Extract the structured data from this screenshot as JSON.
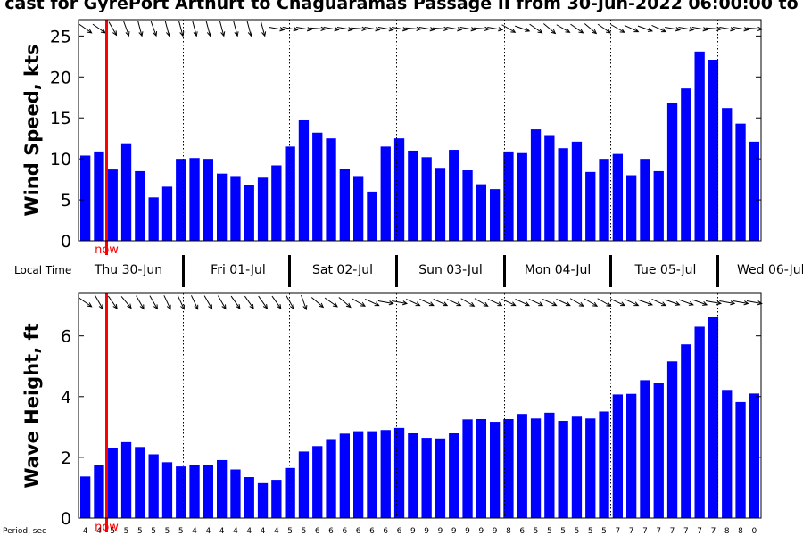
{
  "title": "cast for GyrePort Arthurt to Chaguaramas Passage II from 30-Jun-2022 06:00:00 to",
  "local_time_label": "Local Time",
  "period_label": "Period, sec",
  "now_label": "now",
  "colors": {
    "bar": "#0000ff",
    "now_line": "#ff0000",
    "axis": "#000000"
  },
  "chart_data": [
    {
      "type": "bar",
      "title": "",
      "ylabel": "Wind Speed, kts",
      "ylim": [
        0,
        27
      ],
      "yticks": [
        0,
        5,
        10,
        15,
        20,
        25
      ],
      "values": [
        10.4,
        10.9,
        8.7,
        11.9,
        8.5,
        5.3,
        6.6,
        10.0,
        10.1,
        10.0,
        8.2,
        7.9,
        6.8,
        7.7,
        9.2,
        11.5,
        14.7,
        13.2,
        12.5,
        8.8,
        7.9,
        6.0,
        11.5,
        12.5,
        11.0,
        10.2,
        8.9,
        11.1,
        8.6,
        6.9,
        6.3,
        10.9,
        10.7,
        13.6,
        12.9,
        11.3,
        12.1,
        8.4,
        10.0,
        10.6,
        8.0,
        10.0,
        8.5,
        16.8,
        18.6,
        23.1,
        22.1,
        16.2,
        14.3,
        12.1
      ],
      "wind_direction_deg": [
        125,
        125,
        150,
        160,
        165,
        160,
        165,
        165,
        165,
        165,
        165,
        165,
        165,
        165,
        100,
        100,
        100,
        95,
        100,
        100,
        95,
        100,
        100,
        100,
        95,
        100,
        95,
        100,
        100,
        95,
        100,
        120,
        110,
        125,
        130,
        120,
        125,
        130,
        125,
        120,
        115,
        110,
        115,
        100,
        100,
        100,
        95,
        100,
        100,
        95
      ]
    },
    {
      "type": "bar",
      "title": "",
      "ylabel": "Wave Height, ft",
      "ylim": [
        0,
        7.4
      ],
      "yticks": [
        0,
        2,
        4,
        6
      ],
      "values": [
        1.37,
        1.74,
        2.32,
        2.5,
        2.34,
        2.1,
        1.84,
        1.7,
        1.76,
        1.76,
        1.91,
        1.6,
        1.35,
        1.15,
        1.26,
        1.65,
        2.19,
        2.37,
        2.6,
        2.78,
        2.86,
        2.86,
        2.9,
        2.97,
        2.79,
        2.64,
        2.62,
        2.79,
        3.25,
        3.26,
        3.17,
        3.26,
        3.43,
        3.28,
        3.47,
        3.2,
        3.34,
        3.28,
        3.51,
        4.07,
        4.09,
        4.54,
        4.44,
        5.16,
        5.72,
        6.3,
        6.62,
        4.22,
        3.82,
        4.1
      ],
      "wave_direction_deg": [
        125,
        150,
        145,
        140,
        150,
        150,
        155,
        155,
        155,
        150,
        150,
        145,
        145,
        145,
        145,
        150,
        160,
        130,
        125,
        130,
        120,
        115,
        100,
        100,
        115,
        115,
        115,
        115,
        120,
        120,
        115,
        115,
        115,
        115,
        115,
        115,
        120,
        120,
        120,
        115,
        115,
        110,
        115,
        110,
        110,
        110,
        100,
        100,
        100,
        100
      ],
      "periods": [
        "4",
        "4",
        "5",
        "5",
        "5",
        "5",
        "5",
        "5",
        "4",
        "4",
        "4",
        "4",
        "4",
        "4",
        "4",
        "5",
        "5",
        "6",
        "6",
        "6",
        "6",
        "6",
        "6",
        "6",
        "9",
        "9",
        "9",
        "9",
        "9",
        "9",
        "9",
        "8",
        "6",
        "5",
        "5",
        "5",
        "5",
        "5",
        "5",
        "7",
        "7",
        "7",
        "7",
        "7",
        "7",
        "7",
        "7",
        "8",
        "8",
        "0"
      ]
    }
  ],
  "day_labels": [
    "Thu 30-Jun",
    "Fri 01-Jul",
    "Sat 02-Jul",
    "Sun 03-Jul",
    "Mon 04-Jul",
    "Tue 05-Jul",
    "Wed 06-Jul"
  ]
}
